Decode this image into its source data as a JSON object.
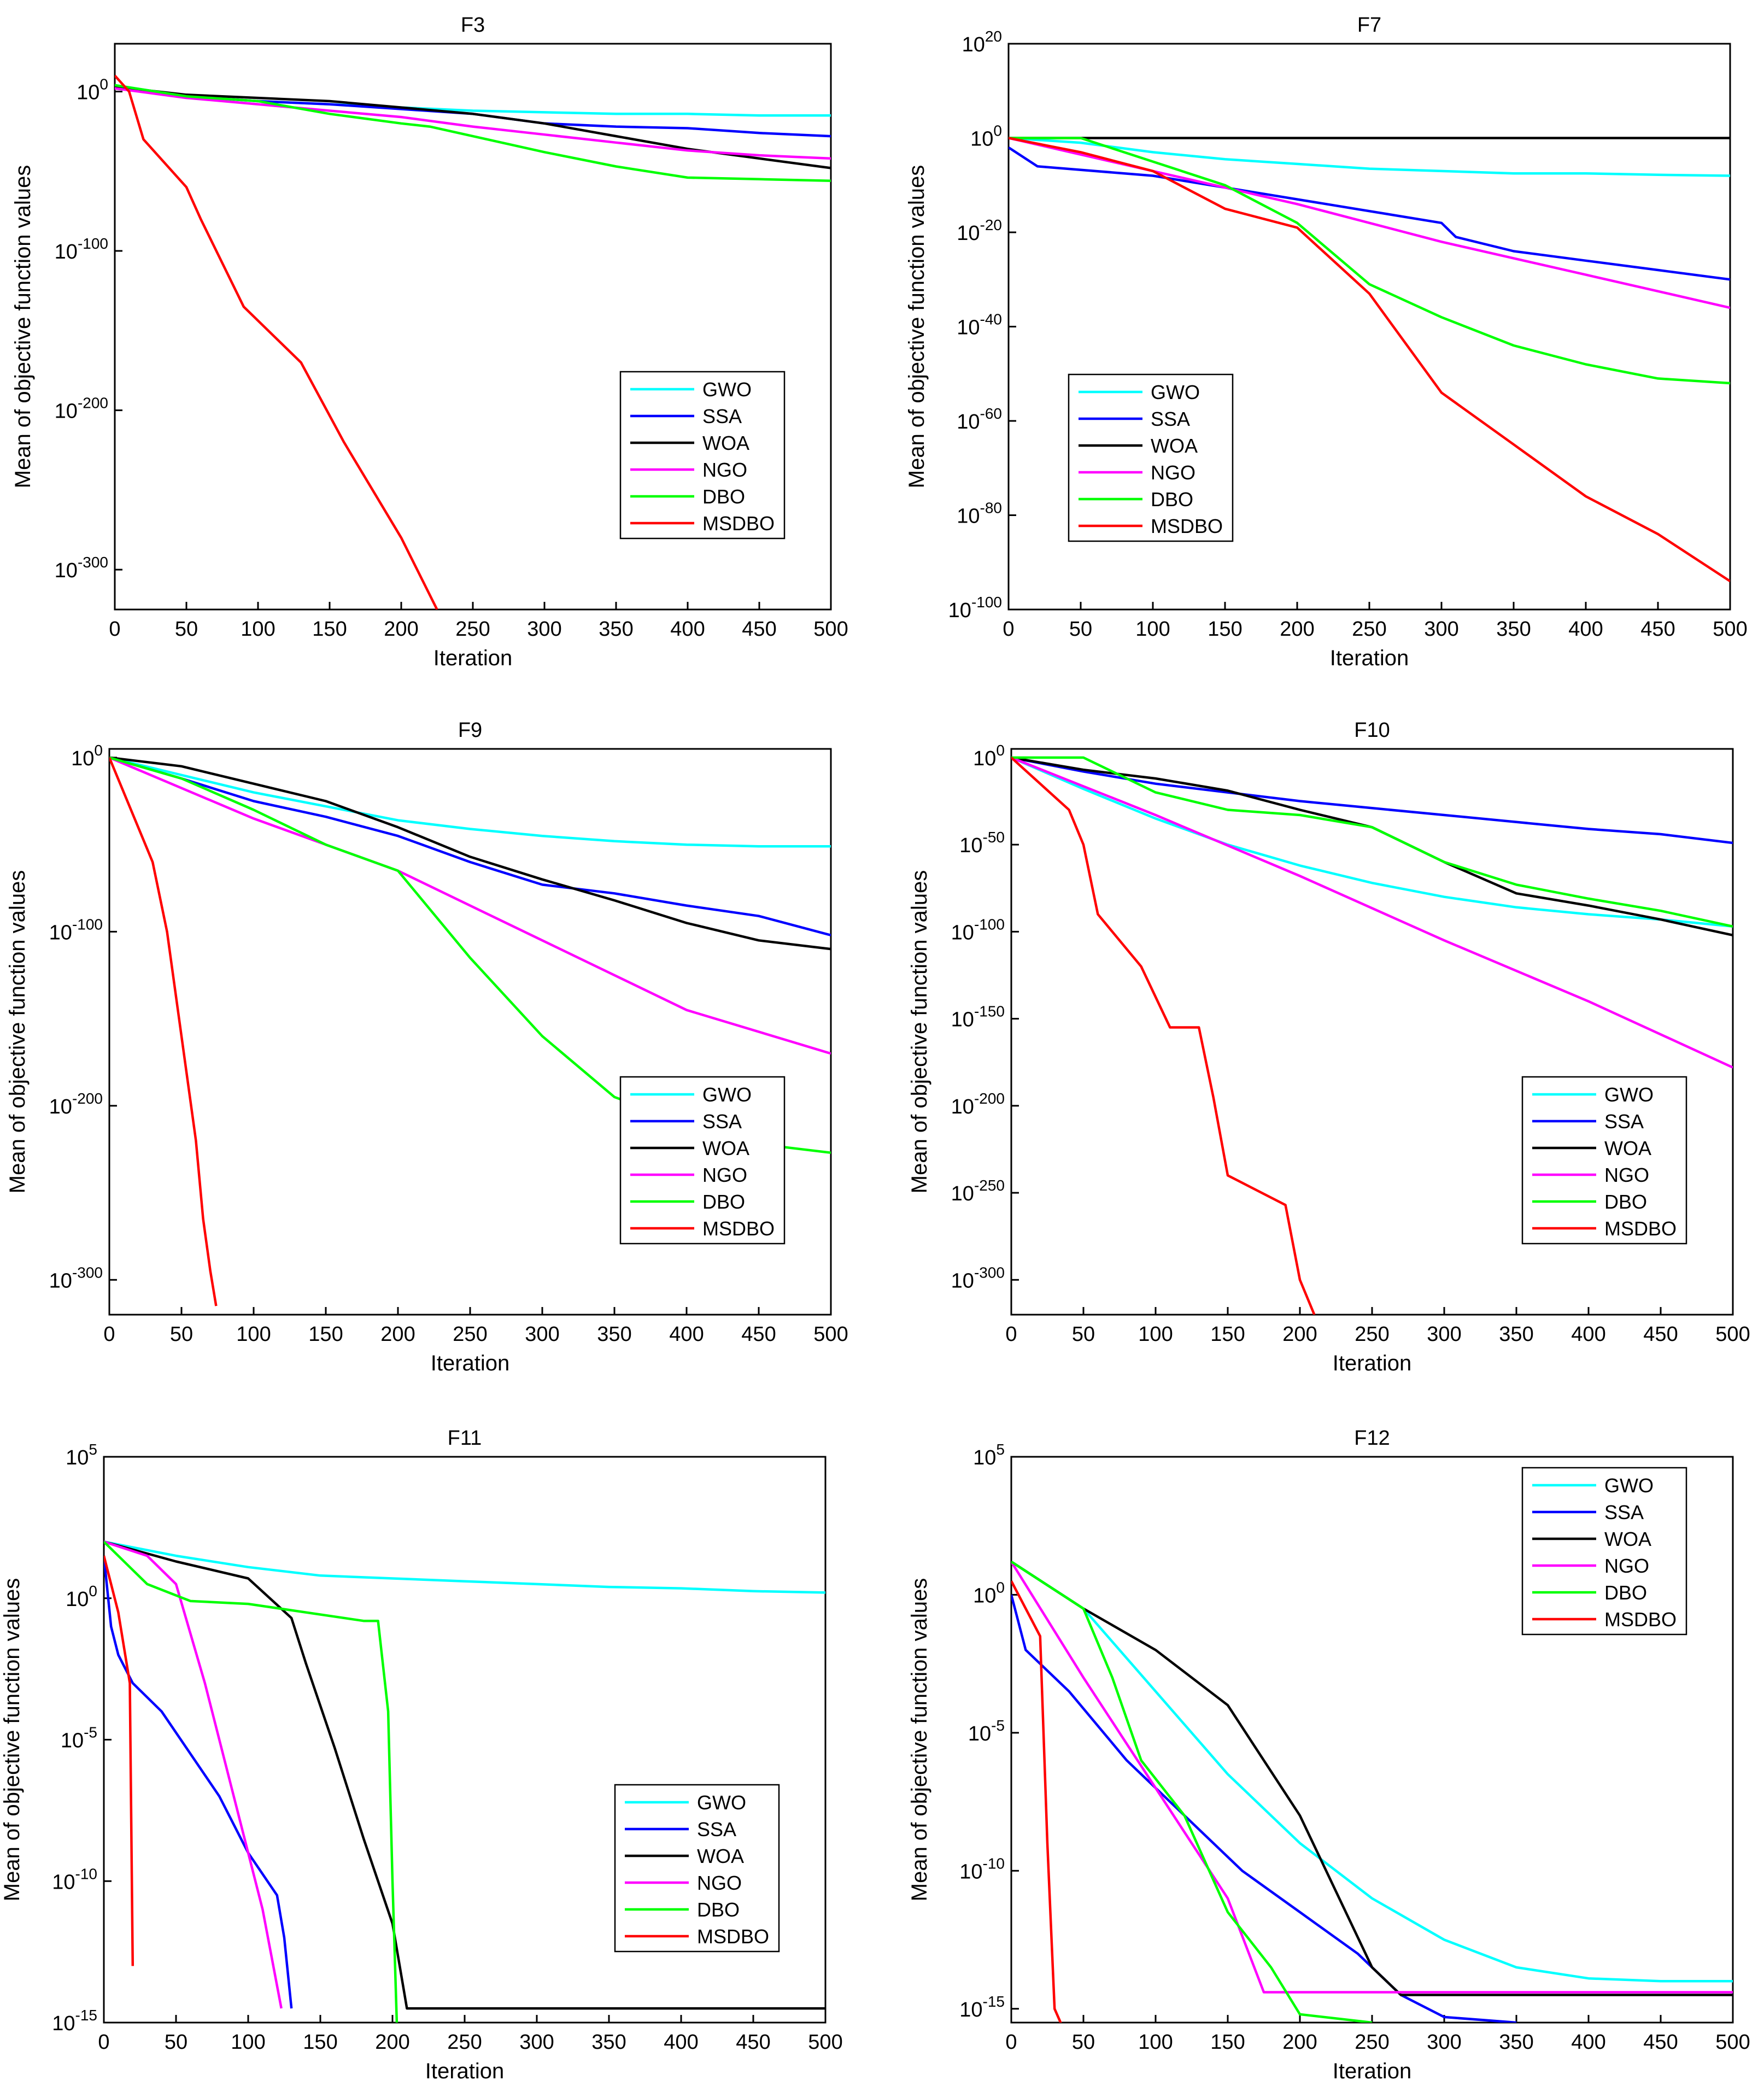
{
  "figure": {
    "ylabel": "Mean of objective function values",
    "xlabel": "Iteration",
    "legend_labels": [
      "GWO",
      "SSA",
      "WOA",
      "NGO",
      "DBO",
      "MSDBO"
    ]
  },
  "colors": {
    "GWO": "#00ffff",
    "SSA": "#0000ff",
    "WOA": "#000000",
    "NGO": "#ff00ff",
    "DBO": "#00ff00",
    "MSDBO": "#ff0000"
  },
  "chart_data": [
    {
      "type": "line",
      "title": "F3",
      "xlabel": "Iteration",
      "ylabel": "Mean of objective function values",
      "xlim": [
        0,
        500
      ],
      "ylim_exp": [
        -325,
        30
      ],
      "log_scale": true,
      "legend": "bottom-right",
      "xticks": [
        0,
        50,
        100,
        150,
        200,
        250,
        300,
        350,
        400,
        450,
        500
      ],
      "yticks_exp": [
        0,
        -100,
        -200,
        -300
      ],
      "series": [
        {
          "name": "GWO",
          "x": [
            0,
            50,
            100,
            150,
            200,
            250,
            300,
            350,
            400,
            450,
            500
          ],
          "y_exp": [
            4,
            -3,
            -6,
            -8,
            -10,
            -12,
            -13,
            -14,
            -14,
            -15,
            -15
          ]
        },
        {
          "name": "SSA",
          "x": [
            0,
            50,
            100,
            150,
            200,
            250,
            300,
            350,
            400,
            450,
            500
          ],
          "y_exp": [
            2,
            -3,
            -6,
            -8,
            -11,
            -14,
            -20,
            -22,
            -23,
            -26,
            -28
          ]
        },
        {
          "name": "WOA",
          "x": [
            0,
            50,
            100,
            150,
            200,
            250,
            300,
            350,
            400,
            450,
            500
          ],
          "y_exp": [
            3,
            -2,
            -4,
            -6,
            -10,
            -14,
            -20,
            -28,
            -36,
            -42,
            -48
          ]
        },
        {
          "name": "NGO",
          "x": [
            0,
            50,
            100,
            150,
            200,
            250,
            300,
            350,
            400,
            450,
            500
          ],
          "y_exp": [
            2,
            -4,
            -8,
            -12,
            -16,
            -22,
            -27,
            -32,
            -37,
            -40,
            -42
          ]
        },
        {
          "name": "DBO",
          "x": [
            0,
            50,
            100,
            150,
            200,
            220,
            300,
            350,
            400,
            450,
            500
          ],
          "y_exp": [
            4,
            -3,
            -6,
            -14,
            -20,
            -22,
            -38,
            -47,
            -54,
            -55,
            -56
          ]
        },
        {
          "name": "MSDBO",
          "x": [
            0,
            10,
            20,
            50,
            60,
            90,
            130,
            160,
            200,
            225
          ],
          "y_exp": [
            10,
            0,
            -30,
            -60,
            -80,
            -135,
            -170,
            -220,
            -280,
            -325
          ]
        }
      ]
    },
    {
      "type": "line",
      "title": "F7",
      "xlabel": "Iteration",
      "ylabel": "Mean of objective function values",
      "xlim": [
        0,
        500
      ],
      "ylim_exp": [
        -100,
        20
      ],
      "log_scale": true,
      "legend": "bottom-left",
      "xticks": [
        0,
        50,
        100,
        150,
        200,
        250,
        300,
        350,
        400,
        450,
        500
      ],
      "yticks_exp": [
        20,
        0,
        -20,
        -40,
        -60,
        -80,
        -100
      ],
      "series": [
        {
          "name": "GWO",
          "x": [
            0,
            50,
            100,
            150,
            200,
            250,
            300,
            350,
            400,
            450,
            500
          ],
          "y_exp": [
            0,
            -1,
            -3,
            -4.5,
            -5.5,
            -6.5,
            -7,
            -7.5,
            -7.5,
            -7.8,
            -8
          ]
        },
        {
          "name": "SSA",
          "x": [
            0,
            20,
            100,
            200,
            300,
            310,
            350,
            400,
            450,
            500
          ],
          "y_exp": [
            -2,
            -6,
            -8,
            -13,
            -18,
            -21,
            -24,
            -26,
            -28,
            -30
          ]
        },
        {
          "name": "WOA",
          "x": [
            0,
            500
          ],
          "y_exp": [
            0,
            0
          ]
        },
        {
          "name": "NGO",
          "x": [
            0,
            100,
            200,
            300,
            400,
            500
          ],
          "y_exp": [
            0,
            -7,
            -14,
            -22,
            -29,
            -36
          ]
        },
        {
          "name": "DBO",
          "x": [
            0,
            50,
            100,
            150,
            200,
            250,
            300,
            350,
            400,
            450,
            500
          ],
          "y_exp": [
            0,
            0,
            -5,
            -10,
            -18,
            -31,
            -38,
            -44,
            -48,
            -51,
            -52
          ]
        },
        {
          "name": "MSDBO",
          "x": [
            0,
            50,
            100,
            150,
            200,
            250,
            300,
            350,
            400,
            450,
            500
          ],
          "y_exp": [
            0,
            -3,
            -7,
            -15,
            -19,
            -33,
            -54,
            -65,
            -76,
            -84,
            -94
          ]
        }
      ]
    },
    {
      "type": "line",
      "title": "F9",
      "xlabel": "Iteration",
      "ylabel": "Mean of objective function values",
      "xlim": [
        0,
        500
      ],
      "ylim_exp": [
        -320,
        5
      ],
      "log_scale": true,
      "legend": "bottom-right",
      "xticks": [
        0,
        50,
        100,
        150,
        200,
        250,
        300,
        350,
        400,
        450,
        500
      ],
      "yticks_exp": [
        0,
        -100,
        -200,
        -300
      ],
      "series": [
        {
          "name": "GWO",
          "x": [
            0,
            50,
            100,
            150,
            200,
            250,
            300,
            350,
            400,
            450,
            500
          ],
          "y_exp": [
            0,
            -10,
            -20,
            -28,
            -36,
            -41,
            -45,
            -48,
            -50,
            -51,
            -51
          ]
        },
        {
          "name": "SSA",
          "x": [
            0,
            50,
            100,
            150,
            200,
            250,
            300,
            350,
            400,
            450,
            500
          ],
          "y_exp": [
            0,
            -12,
            -25,
            -34,
            -45,
            -60,
            -73,
            -78,
            -85,
            -91,
            -102
          ]
        },
        {
          "name": "WOA",
          "x": [
            0,
            50,
            100,
            150,
            200,
            250,
            300,
            350,
            400,
            450,
            500
          ],
          "y_exp": [
            0,
            -5,
            -15,
            -25,
            -40,
            -57,
            -70,
            -82,
            -95,
            -105,
            -110
          ]
        },
        {
          "name": "NGO",
          "x": [
            0,
            100,
            200,
            300,
            400,
            500
          ],
          "y_exp": [
            0,
            -35,
            -65,
            -105,
            -145,
            -170
          ]
        },
        {
          "name": "DBO",
          "x": [
            0,
            50,
            100,
            150,
            200,
            250,
            300,
            350,
            400,
            450,
            500
          ],
          "y_exp": [
            0,
            -12,
            -30,
            -50,
            -65,
            -115,
            -160,
            -195,
            -210,
            -222,
            -227
          ]
        },
        {
          "name": "MSDBO",
          "x": [
            0,
            30,
            40,
            50,
            60,
            65,
            70,
            74
          ],
          "y_exp": [
            0,
            -60,
            -100,
            -160,
            -220,
            -265,
            -295,
            -315
          ]
        }
      ]
    },
    {
      "type": "line",
      "title": "F10",
      "xlabel": "Iteration",
      "ylabel": "Mean of objective function values",
      "xlim": [
        0,
        500
      ],
      "ylim_exp": [
        -320,
        5
      ],
      "log_scale": true,
      "legend": "bottom-right",
      "xticks": [
        0,
        50,
        100,
        150,
        200,
        250,
        300,
        350,
        400,
        450,
        500
      ],
      "yticks_exp": [
        0,
        -50,
        -100,
        -150,
        -200,
        -250,
        -300
      ],
      "series": [
        {
          "name": "GWO",
          "x": [
            0,
            50,
            100,
            150,
            200,
            250,
            300,
            350,
            400,
            450,
            500
          ],
          "y_exp": [
            0,
            -18,
            -35,
            -50,
            -62,
            -72,
            -80,
            -86,
            -90,
            -93,
            -97
          ]
        },
        {
          "name": "SSA",
          "x": [
            0,
            50,
            100,
            150,
            200,
            250,
            300,
            350,
            400,
            450,
            500
          ],
          "y_exp": [
            0,
            -8,
            -15,
            -20,
            -25,
            -29,
            -33,
            -37,
            -41,
            -44,
            -49
          ]
        },
        {
          "name": "WOA",
          "x": [
            0,
            50,
            100,
            150,
            200,
            250,
            300,
            350,
            400,
            450,
            500
          ],
          "y_exp": [
            0,
            -7,
            -12,
            -19,
            -30,
            -40,
            -60,
            -78,
            -85,
            -93,
            -102
          ]
        },
        {
          "name": "NGO",
          "x": [
            0,
            100,
            200,
            300,
            400,
            500
          ],
          "y_exp": [
            0,
            -33,
            -68,
            -105,
            -140,
            -178
          ]
        },
        {
          "name": "DBO",
          "x": [
            0,
            50,
            100,
            150,
            200,
            250,
            300,
            350,
            400,
            450,
            500
          ],
          "y_exp": [
            0,
            0,
            -20,
            -30,
            -33,
            -40,
            -60,
            -73,
            -81,
            -88,
            -97
          ]
        },
        {
          "name": "MSDBO",
          "x": [
            0,
            40,
            50,
            60,
            90,
            110,
            130,
            140,
            150,
            190,
            200,
            210
          ],
          "y_exp": [
            0,
            -30,
            -50,
            -90,
            -120,
            -155,
            -155,
            -195,
            -240,
            -257,
            -300,
            -320
          ]
        }
      ]
    },
    {
      "type": "line",
      "title": "F11",
      "xlabel": "Iteration",
      "ylabel": "Mean of objective function values",
      "xlim": [
        0,
        500
      ],
      "ylim_exp": [
        -15,
        5
      ],
      "log_scale": true,
      "legend": "bottom-right",
      "xticks": [
        0,
        50,
        100,
        150,
        200,
        250,
        300,
        350,
        400,
        450,
        500
      ],
      "yticks_exp": [
        5,
        0,
        -5,
        -10,
        -15
      ],
      "series": [
        {
          "name": "GWO",
          "x": [
            0,
            50,
            100,
            150,
            200,
            250,
            300,
            350,
            400,
            450,
            500
          ],
          "y_exp": [
            2,
            1.5,
            1.1,
            0.8,
            0.7,
            0.6,
            0.5,
            0.4,
            0.35,
            0.25,
            0.2
          ]
        },
        {
          "name": "SSA",
          "x": [
            0,
            5,
            10,
            20,
            40,
            60,
            80,
            100,
            120,
            125,
            130
          ],
          "y_exp": [
            1.5,
            -1,
            -2,
            -3,
            -4,
            -5.5,
            -7,
            -9,
            -10.5,
            -12,
            -14.5
          ]
        },
        {
          "name": "WOA",
          "x": [
            0,
            50,
            100,
            130,
            140,
            160,
            180,
            200,
            210,
            500
          ],
          "y_exp": [
            2,
            1.3,
            0.7,
            -0.7,
            -2.3,
            -5.3,
            -8.5,
            -11.5,
            -14.5,
            -14.5
          ]
        },
        {
          "name": "NGO",
          "x": [
            0,
            30,
            50,
            70,
            90,
            110,
            123
          ],
          "y_exp": [
            2,
            1.5,
            0.5,
            -3,
            -7,
            -11,
            -14.5
          ]
        },
        {
          "name": "DBO",
          "x": [
            0,
            30,
            60,
            100,
            180,
            190,
            197,
            200,
            203
          ],
          "y_exp": [
            2,
            0.5,
            -0.1,
            -0.2,
            -0.8,
            -0.8,
            -4,
            -10,
            -15
          ]
        },
        {
          "name": "MSDBO",
          "x": [
            0,
            10,
            18,
            20
          ],
          "y_exp": [
            1.5,
            -0.5,
            -3,
            -13
          ]
        }
      ]
    },
    {
      "type": "line",
      "title": "F12",
      "xlabel": "Iteration",
      "ylabel": "Mean of objective function values",
      "xlim": [
        0,
        500
      ],
      "ylim_exp": [
        -15.5,
        5
      ],
      "log_scale": true,
      "legend": "top-right",
      "xticks": [
        0,
        50,
        100,
        150,
        200,
        250,
        300,
        350,
        400,
        450,
        500
      ],
      "yticks_exp": [
        5,
        0,
        -5,
        -10,
        -15
      ],
      "series": [
        {
          "name": "GWO",
          "x": [
            0,
            50,
            100,
            150,
            200,
            250,
            300,
            350,
            400,
            450,
            500
          ],
          "y_exp": [
            1.2,
            -0.5,
            -3.5,
            -6.5,
            -9,
            -11,
            -12.5,
            -13.5,
            -13.9,
            -14,
            -14
          ]
        },
        {
          "name": "SSA",
          "x": [
            0,
            10,
            40,
            80,
            120,
            160,
            200,
            240,
            270,
            300,
            350
          ],
          "y_exp": [
            0,
            -2,
            -3.5,
            -6,
            -8,
            -10,
            -11.5,
            -13,
            -14.5,
            -15.3,
            -15.5
          ]
        },
        {
          "name": "WOA",
          "x": [
            0,
            50,
            100,
            150,
            200,
            250,
            270,
            500
          ],
          "y_exp": [
            1.2,
            -0.5,
            -2,
            -4,
            -8,
            -13.5,
            -14.5,
            -14.5
          ]
        },
        {
          "name": "NGO",
          "x": [
            0,
            50,
            100,
            150,
            175,
            500
          ],
          "y_exp": [
            1.2,
            -3,
            -7,
            -11,
            -14.4,
            -14.4
          ]
        },
        {
          "name": "DBO",
          "x": [
            0,
            50,
            70,
            90,
            120,
            150,
            180,
            200,
            250
          ],
          "y_exp": [
            1.2,
            -0.5,
            -3,
            -6,
            -8,
            -11.5,
            -13.5,
            -15.2,
            -15.5
          ]
        },
        {
          "name": "MSDBO",
          "x": [
            0,
            20,
            25,
            30,
            35,
            500
          ],
          "y_exp": [
            0.5,
            -1.5,
            -9,
            -15,
            -15.6,
            -15.6
          ]
        }
      ]
    }
  ]
}
